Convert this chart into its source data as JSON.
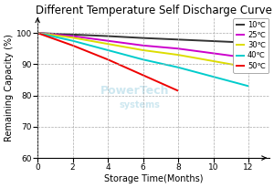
{
  "title": "Different Temperature Self Discharge Curve",
  "xlabel": "Storage Time(Months)",
  "ylabel": "Remaining Capacity (%)",
  "xlim": [
    0,
    13.2
  ],
  "ylim": [
    60,
    105
  ],
  "xticks": [
    0,
    2,
    4,
    6,
    8,
    10,
    12
  ],
  "yticks": [
    60,
    70,
    80,
    90,
    100
  ],
  "series": [
    {
      "label": "10℃",
      "color": "#333333",
      "x": [
        0,
        2,
        4,
        6,
        8,
        10,
        12
      ],
      "y": [
        100,
        99.5,
        99.0,
        98.4,
        97.9,
        97.4,
        96.9
      ]
    },
    {
      "label": "25℃",
      "color": "#cc00cc",
      "x": [
        0,
        2,
        4,
        6,
        8,
        10,
        12
      ],
      "y": [
        100,
        99.0,
        97.5,
        96.0,
        95.0,
        93.5,
        92.0
      ]
    },
    {
      "label": "30℃",
      "color": "#dddd00",
      "x": [
        0,
        2,
        4,
        6,
        8,
        10,
        12
      ],
      "y": [
        100,
        98.5,
        96.5,
        94.5,
        93.0,
        91.0,
        89.0
      ]
    },
    {
      "label": "40℃",
      "color": "#00cccc",
      "x": [
        0,
        2,
        4,
        6,
        8,
        10,
        12
      ],
      "y": [
        100,
        97.5,
        94.5,
        91.5,
        89.0,
        86.0,
        83.0
      ]
    },
    {
      "label": "50℃",
      "color": "#ee0000",
      "x": [
        0,
        2,
        4,
        6,
        8
      ],
      "y": [
        100,
        96.0,
        91.5,
        86.5,
        81.5
      ]
    }
  ],
  "grid_color": "#aaaaaa",
  "grid_linestyle": "--",
  "background_color": "#ffffff",
  "watermark1": "PowerTech",
  "watermark2": "systems",
  "legend_fontsize": 6.0,
  "title_fontsize": 8.5,
  "axis_label_fontsize": 7,
  "tick_fontsize": 6.5
}
